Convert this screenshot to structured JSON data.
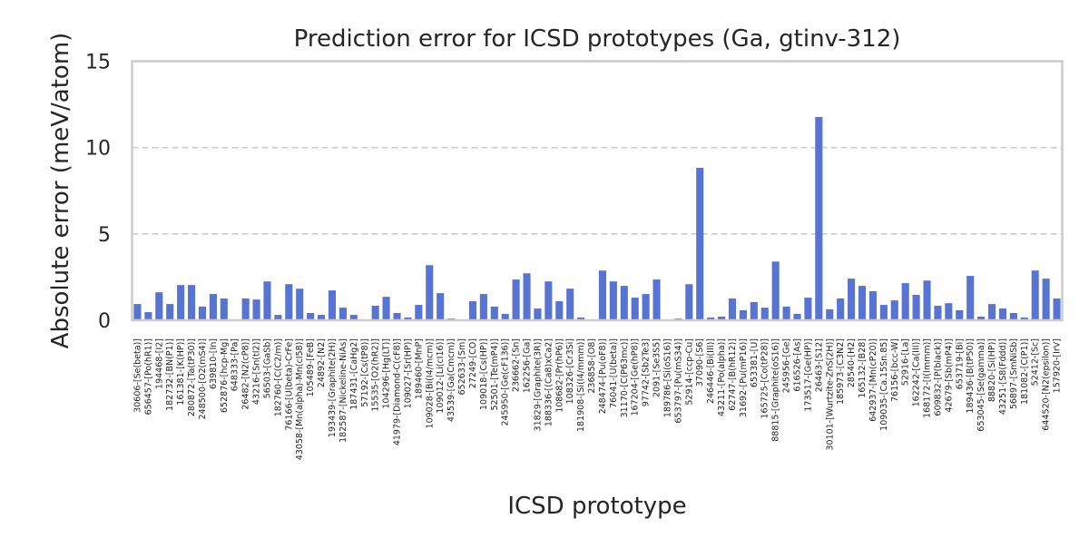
{
  "chart_data": {
    "type": "bar",
    "title": "Prediction error for ICSD prototypes (Ga, gtinv-312)",
    "xlabel": "ICSD prototype",
    "ylabel": "Absolute error (meV/atom)",
    "ylim": [
      0,
      15
    ],
    "yticks": [
      0,
      5,
      10,
      15
    ],
    "grid": "horizontal dashed",
    "bar_color": "#5874d3",
    "categories": [
      "30606-[Se(beta)]",
      "656457-[Po(hR1)]",
      "194468-[I2]",
      "182732-[BN(P1)]",
      "161381-[K(HP)]",
      "280872-[Ta(tP30)]",
      "248500-[O2(mS4)]",
      "639810-[In]",
      "652876-[hcp-Mg]",
      "648333-[Pa]",
      "26482-[N2(cP8)]",
      "43216-[Sn(tI2)]",
      "56503-[GaSb]",
      "182760-[C(C2/m)]",
      "76166-[U(beta)-CrFe]",
      "43058-[Mn(alpha)-Mn(cI58)]",
      "105489-[FeB]",
      "24892-[N2]",
      "193439-[Graphite(2H)]",
      "182587-[Nickeline-NiAs]",
      "187431-[CaHg2]",
      "57192-[Cs(tP8)]",
      "15535-[O2(hR2)]",
      "104296-[Hg(LT)]",
      "41979-[Diamond-C(cF8)]",
      "109027-[Sr(HP)]",
      "189460-[MnP]",
      "109028-[Bi(I4/mcm)]",
      "109012-[Li(cI16)]",
      "43539-[Ga(Cmcm)]",
      "652633-[Sm]",
      "27249-[CO]",
      "109018-[Cs(HP)]",
      "52501-[Te(mP4)]",
      "245950-[Ge(cF136)]",
      "236662-[Sn]",
      "162256-[Ga]",
      "31829-[Graphite(3R)]",
      "188336-[(Ca8)xCa2]",
      "108682-[Pr(hP6)]",
      "108326-[Cr3Si]",
      "181908-[Si(I4/mmm)]",
      "236858-[O8]",
      "248474-[Pu(oF8)]",
      "76041-[U(beta)]",
      "31170-[C(P63mc)]",
      "167204-[Ge(hP8)]",
      "97742-[Sb2Te3]",
      "2091-[Se3S5]",
      "189786-[Si(oS16)]",
      "653797-[Pu(mS34)]",
      "52914-[ccp-Cu]",
      "37090-[S6]",
      "246446-[Bi(III)]",
      "43211-[Po(alpha)]",
      "62747-[B(hR12)]",
      "31692-[Pu(mP16)]",
      "653381-[U]",
      "165725-[Co(tP28)]",
      "88815-[Graphite(oS16)]",
      "245956-[Ge]",
      "616526-[As]",
      "173517-[Ge(HP)]",
      "26463-[S12]",
      "30101-[Wurtzite-ZnS(2H)]",
      "185973-[C3N2]",
      "28540-[H2]",
      "165132-[B28]",
      "642937-[Mn(cP20)]",
      "109035-[Ca.15Sn.85]",
      "76156-[bcc-W]",
      "52916-[La]",
      "162242-[Ca(III)]",
      "168172-[I(Immm)]",
      "609832-[P(black)]",
      "42679-[Sb(mP4)]",
      "653719-[Bi]",
      "189436-[B(tP50)]",
      "653045-[Se(gamma)]",
      "88820-[Si(HP)]",
      "43251-[S8(Fddd)]",
      "56897-[SmNiSb]",
      "181082-[C(P1)]",
      "52412-[Sc]",
      "644520-[N2(epsilon)]",
      "157920-[IrV]"
    ],
    "values": [
      0.94,
      0.47,
      1.62,
      0.94,
      2.04,
      2.04,
      0.79,
      1.52,
      1.26,
      0.05,
      1.26,
      1.2,
      2.25,
      0.31,
      2.09,
      1.83,
      0.42,
      0.31,
      1.73,
      0.73,
      0.31,
      0.0,
      0.84,
      1.36,
      0.42,
      0.16,
      0.89,
      3.19,
      1.57,
      0.1,
      0.0,
      1.1,
      1.52,
      0.79,
      0.37,
      2.36,
      2.72,
      0.68,
      2.25,
      1.1,
      1.83,
      0.16,
      0.0,
      2.88,
      2.25,
      1.99,
      1.31,
      1.52,
      2.36,
      0.05,
      0.1,
      2.09,
      8.83,
      0.16,
      0.21,
      1.26,
      0.58,
      1.05,
      0.73,
      3.4,
      0.79,
      0.37,
      1.31,
      11.77,
      0.63,
      1.26,
      2.41,
      1.99,
      1.68,
      0.89,
      1.15,
      2.15,
      1.47,
      2.3,
      0.84,
      0.99,
      0.58,
      2.57,
      0.21,
      0.94,
      0.68,
      0.42,
      0.16,
      2.88,
      2.41,
      1.26
    ]
  }
}
